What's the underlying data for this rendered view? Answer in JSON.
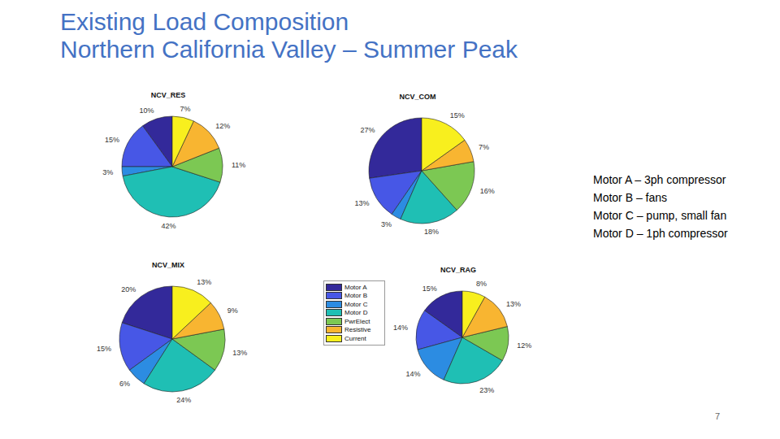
{
  "title": [
    "Existing Load Composition",
    "Northern California Valley – Summer Peak"
  ],
  "notes": [
    "Motor A – 3ph compressor",
    "Motor B – fans",
    "Motor C – pump, small fan",
    "Motor D – 1ph compressor"
  ],
  "page_number": "7",
  "chart_data": [
    {
      "type": "pie",
      "title": "NCV_RES",
      "categories": [
        "Motor A",
        "Motor B",
        "Motor C",
        "Motor D",
        "PwrElect",
        "Resistive",
        "Current"
      ],
      "values": [
        10,
        15,
        3,
        42,
        11,
        12,
        7
      ],
      "value_labels": [
        "10%",
        "15%",
        "3%",
        "42%",
        "11%",
        "12%",
        "7%"
      ],
      "colors": [
        "#33299a",
        "#4757e6",
        "#2c8ce2",
        "#1fbfb4",
        "#7cc853",
        "#f8b531",
        "#f8ef1e"
      ]
    },
    {
      "type": "pie",
      "title": "NCV_COM",
      "categories": [
        "Motor A",
        "Motor B",
        "Motor C",
        "Motor D",
        "PwrElect",
        "Resistive",
        "Current"
      ],
      "values": [
        27,
        13,
        3,
        18,
        16,
        7,
        15
      ],
      "value_labels": [
        "27%",
        "13%",
        "3%",
        "18%",
        "16%",
        "7%",
        "15%"
      ],
      "colors": [
        "#33299a",
        "#4757e6",
        "#2c8ce2",
        "#1fbfb4",
        "#7cc853",
        "#f8b531",
        "#f8ef1e"
      ]
    },
    {
      "type": "pie",
      "title": "NCV_MIX",
      "categories": [
        "Motor A",
        "Motor B",
        "Motor C",
        "Motor D",
        "PwrElect",
        "Resistive",
        "Current"
      ],
      "values": [
        20,
        15,
        6,
        24,
        13,
        9,
        13
      ],
      "value_labels": [
        "20%",
        "15%",
        "6%",
        "24%",
        "13%",
        "9%",
        "13%"
      ],
      "colors": [
        "#33299a",
        "#4757e6",
        "#2c8ce2",
        "#1fbfb4",
        "#7cc853",
        "#f8b531",
        "#f8ef1e"
      ]
    },
    {
      "type": "pie",
      "title": "NCV_RAG",
      "categories": [
        "Motor A",
        "Motor B",
        "Motor C",
        "Motor D",
        "PwrElect",
        "Resistive",
        "Current"
      ],
      "values": [
        15,
        14,
        14,
        23,
        12,
        13,
        8
      ],
      "value_labels": [
        "15%",
        "14%",
        "14%",
        "23%",
        "12%",
        "13%",
        "8%"
      ],
      "colors": [
        "#33299a",
        "#4757e6",
        "#2c8ce2",
        "#1fbfb4",
        "#7cc853",
        "#f8b531",
        "#f8ef1e"
      ]
    }
  ]
}
